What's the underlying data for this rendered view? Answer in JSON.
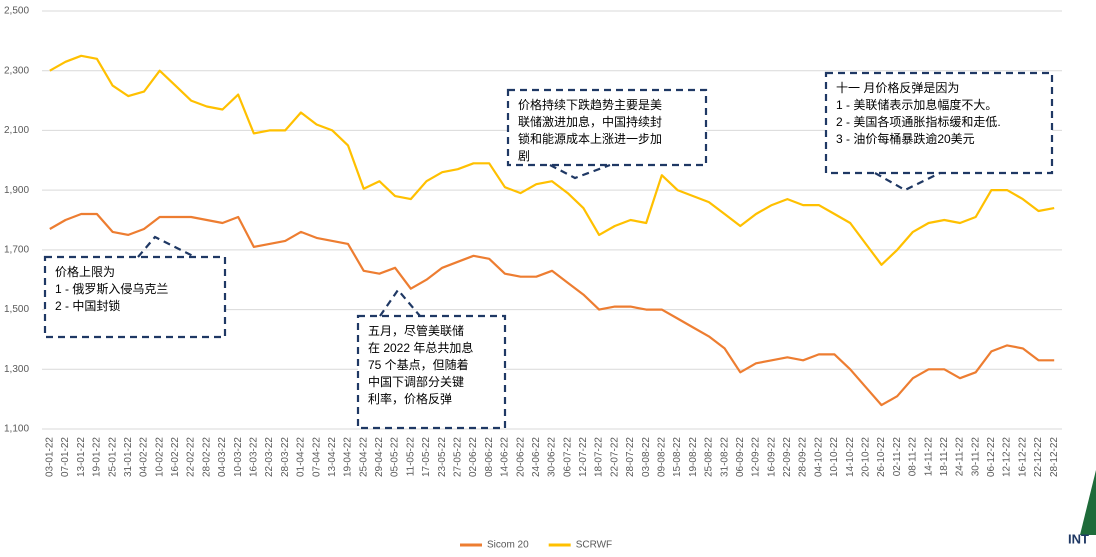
{
  "chart_data": {
    "type": "line",
    "categories": [
      "03-01-22",
      "07-01-22",
      "13-01-22",
      "19-01-22",
      "25-01-22",
      "31-01-22",
      "04-02-22",
      "10-02-22",
      "16-02-22",
      "22-02-22",
      "28-02-22",
      "04-03-22",
      "10-03-22",
      "16-03-22",
      "22-03-22",
      "28-03-22",
      "01-04-22",
      "07-04-22",
      "13-04-22",
      "19-04-22",
      "25-04-22",
      "29-04-22",
      "05-05-22",
      "11-05-22",
      "17-05-22",
      "23-05-22",
      "27-05-22",
      "02-06-22",
      "08-06-22",
      "14-06-22",
      "20-06-22",
      "24-06-22",
      "30-06-22",
      "06-07-22",
      "12-07-22",
      "18-07-22",
      "22-07-22",
      "28-07-22",
      "03-08-22",
      "09-08-22",
      "15-08-22",
      "19-08-22",
      "25-08-22",
      "31-08-22",
      "06-09-22",
      "12-09-22",
      "16-09-22",
      "22-09-22",
      "28-09-22",
      "04-10-22",
      "10-10-22",
      "14-10-22",
      "20-10-22",
      "26-10-22",
      "02-11-22",
      "08-11-22",
      "14-11-22",
      "18-11-22",
      "24-11-22",
      "30-11-22",
      "06-12-22",
      "12-12-22",
      "16-12-22",
      "22-12-22",
      "28-12-22"
    ],
    "series": [
      {
        "name": "Sicom 20",
        "color": "#ED7D31",
        "values": [
          1770,
          1800,
          1820,
          1820,
          1760,
          1750,
          1770,
          1810,
          1810,
          1810,
          1800,
          1790,
          1810,
          1710,
          1720,
          1730,
          1760,
          1740,
          1730,
          1720,
          1630,
          1620,
          1640,
          1570,
          1600,
          1640,
          1660,
          1680,
          1670,
          1620,
          1610,
          1610,
          1630,
          1590,
          1550,
          1500,
          1510,
          1510,
          1500,
          1500,
          1470,
          1440,
          1410,
          1370,
          1290,
          1320,
          1330,
          1340,
          1330,
          1350,
          1350,
          1300,
          1240,
          1180,
          1210,
          1270,
          1300,
          1300,
          1270,
          1290,
          1360,
          1380,
          1370,
          1330,
          1330
        ]
      },
      {
        "name": "SCRWF",
        "color": "#FFC000",
        "values": [
          2300,
          2330,
          2350,
          2340,
          2250,
          2215,
          2230,
          2300,
          2250,
          2200,
          2180,
          2170,
          2220,
          2090,
          2100,
          2100,
          2160,
          2120,
          2100,
          2050,
          1905,
          1930,
          1880,
          1870,
          1930,
          1960,
          1970,
          1990,
          1990,
          1910,
          1890,
          1920,
          1930,
          1890,
          1840,
          1750,
          1780,
          1800,
          1790,
          1950,
          1900,
          1880,
          1860,
          1820,
          1780,
          1820,
          1850,
          1870,
          1850,
          1850,
          1820,
          1790,
          1720,
          1650,
          1700,
          1760,
          1790,
          1800,
          1790,
          1810,
          1900,
          1900,
          1870,
          1830,
          1840
        ]
      }
    ],
    "ylim": [
      1100,
      2500
    ],
    "yticks": [
      {
        "value": 1100,
        "label": "1,100"
      },
      {
        "value": 1300,
        "label": "1,300"
      },
      {
        "value": 1500,
        "label": "1,500"
      },
      {
        "value": 1700,
        "label": "1,700"
      },
      {
        "value": 1900,
        "label": "1,900"
      },
      {
        "value": 2100,
        "label": "2,100"
      },
      {
        "value": 2300,
        "label": "2,300"
      },
      {
        "value": 2500,
        "label": "2,500"
      }
    ],
    "grid": true,
    "annotations": [
      {
        "lines": [
          "价格上限为",
          "1 - 俄罗斯入侵乌克兰",
          "2 - 中国封锁"
        ]
      },
      {
        "lines": [
          "五月，尽管美联储",
          "在 2022 年总共加息",
          "75 个基点，但随着",
          "中国下调部分关键",
          "利率，价格反弹"
        ]
      },
      {
        "lines": [
          "价格持续下跌趋势主要是美",
          "联储激进加息，中国持续封",
          "锁和能源成本上涨进一步加",
          "剧"
        ]
      },
      {
        "lines": [
          "十一 月价格反弹是因为",
          "1 - 美联储表示加息幅度不大。",
          "2 - 美国各项通胀指标缓和走低.",
          "3 - 油价每桶暴跌逾20美元"
        ]
      }
    ],
    "logo_text": "INT"
  }
}
